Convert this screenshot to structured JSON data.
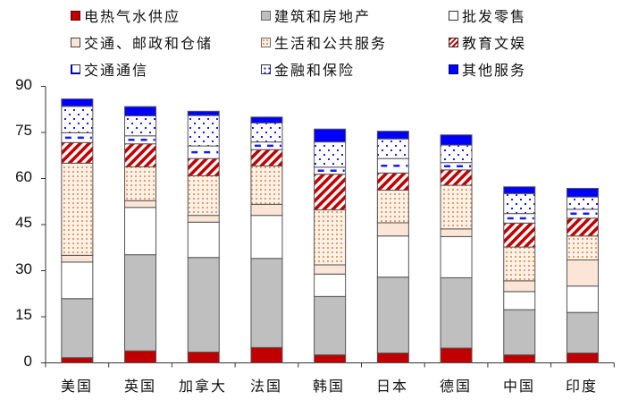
{
  "chart_data": {
    "type": "bar",
    "stacked": true,
    "title": "",
    "xlabel": "",
    "ylabel": "",
    "ylim": [
      0,
      90
    ],
    "yticks": [
      0,
      15,
      30,
      45,
      60,
      75,
      90
    ],
    "grid": false,
    "legend_position": "top",
    "categories": [
      "美国",
      "英国",
      "加拿大",
      "法国",
      "韩国",
      "日本",
      "德国",
      "中国",
      "印度"
    ],
    "series": [
      {
        "name": "电热气水供应",
        "key": "utilities",
        "color": "#c00000",
        "pattern": "solid",
        "values": [
          1.7,
          3.9,
          3.5,
          5.0,
          2.6,
          3.2,
          4.8,
          2.6,
          3.2
        ]
      },
      {
        "name": "建筑和房地产",
        "key": "construction",
        "color": "#bfbfbf",
        "pattern": "solid",
        "values": [
          19.2,
          31.3,
          30.8,
          29.0,
          19.0,
          24.7,
          22.9,
          14.7,
          13.2
        ]
      },
      {
        "name": "批发零售",
        "key": "wholesale",
        "color": "#ffffff",
        "pattern": "solid",
        "values": [
          11.9,
          15.4,
          11.5,
          14.0,
          7.3,
          13.4,
          13.4,
          5.9,
          8.6
        ]
      },
      {
        "name": "交通、邮政和仓储",
        "key": "transport",
        "color": "#fbe5d6",
        "pattern": "solid",
        "values": [
          2.2,
          2.2,
          2.2,
          3.6,
          3.0,
          4.3,
          2.5,
          3.5,
          8.5
        ]
      },
      {
        "name": "生活和公共服务",
        "key": "public",
        "color": "#ed7d31",
        "pattern": "dots-orange",
        "values": [
          30.0,
          11.0,
          12.9,
          12.5,
          17.9,
          10.6,
          14.2,
          11.0,
          7.8
        ]
      },
      {
        "name": "教育文娱",
        "key": "education",
        "color": "#c00000",
        "pattern": "diagonal-red",
        "values": [
          6.7,
          7.5,
          5.6,
          5.3,
          11.6,
          5.6,
          5.0,
          7.8,
          5.8
        ]
      },
      {
        "name": "交通通信",
        "key": "telecom",
        "color": "#0000ff",
        "pattern": "dashes-blue",
        "values": [
          3.2,
          2.6,
          4.1,
          2.5,
          2.3,
          4.7,
          2.4,
          3.1,
          2.9
        ]
      },
      {
        "name": "金融和保险",
        "key": "finance",
        "color": "#0000ff",
        "pattern": "dots-blue",
        "values": [
          8.6,
          6.5,
          9.9,
          6.2,
          8.2,
          6.4,
          5.7,
          6.5,
          4.0
        ]
      },
      {
        "name": "其他服务",
        "key": "other",
        "color": "#0000ff",
        "pattern": "solid",
        "values": [
          2.4,
          3.0,
          1.4,
          1.9,
          4.2,
          2.5,
          3.3,
          2.2,
          2.8
        ]
      }
    ]
  },
  "legend": {
    "items": [
      {
        "label": "电热气水供应"
      },
      {
        "label": "建筑和房地产"
      },
      {
        "label": "批发零售"
      },
      {
        "label": "交通、邮政和仓储"
      },
      {
        "label": "生活和公共服务"
      },
      {
        "label": "教育文娱"
      },
      {
        "label": "交通通信"
      },
      {
        "label": "金融和保险"
      },
      {
        "label": "其他服务"
      }
    ]
  },
  "axis": {
    "y_labels": [
      "0",
      "15",
      "30",
      "45",
      "60",
      "75",
      "90"
    ],
    "x_labels": [
      "美国",
      "英国",
      "加拿大",
      "法国",
      "韩国",
      "日本",
      "德国",
      "中国",
      "印度"
    ]
  }
}
